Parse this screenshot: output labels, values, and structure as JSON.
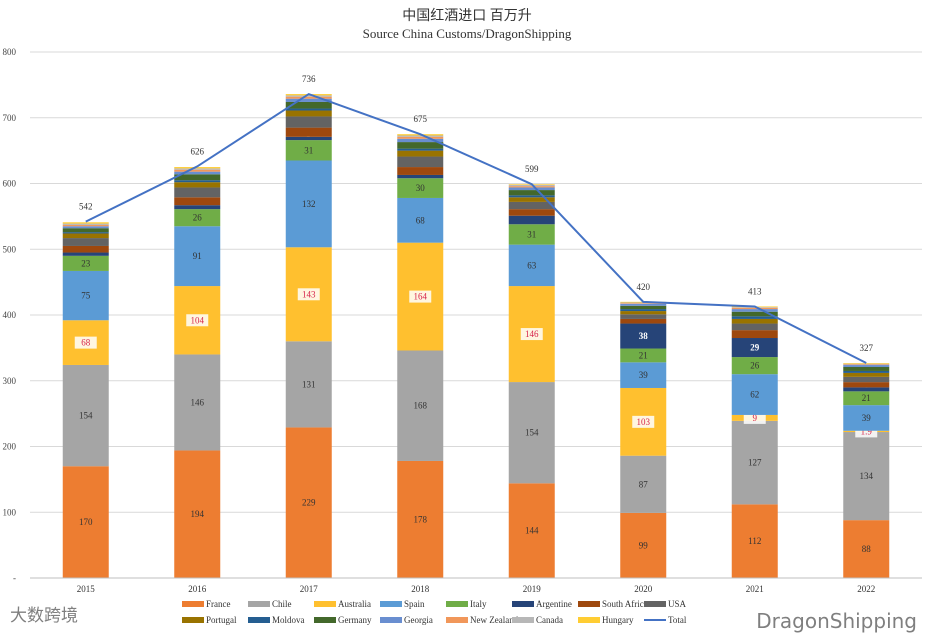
{
  "chart_data": {
    "type": "bar",
    "title": "中国红酒进口 百万升",
    "subtitle": "Source China Customs/DragonShipping",
    "xlabel": "",
    "ylabel": "",
    "ylim": [
      0,
      800
    ],
    "yticks": [
      "-",
      "100",
      "200",
      "300",
      "400",
      "500",
      "600",
      "700",
      "800"
    ],
    "grid": true,
    "legend_position": "bottom",
    "categories": [
      "2015",
      "2016",
      "2017",
      "2018",
      "2019",
      "2020",
      "2021",
      "2022"
    ],
    "series": [
      {
        "name": "France",
        "color": "#ED7D31",
        "labeled": true,
        "values": [
          170,
          194,
          229,
          178,
          144,
          99,
          112,
          88
        ]
      },
      {
        "name": "Chile",
        "color": "#A5A5A5",
        "labeled": true,
        "values": [
          154,
          146,
          131,
          168,
          154,
          87,
          127,
          134
        ]
      },
      {
        "name": "Australia",
        "color": "#FFC02F",
        "labeled": true,
        "values": [
          68,
          104,
          143,
          164,
          146,
          103,
          9.0,
          1.9
        ]
      },
      {
        "name": "Spain",
        "color": "#5B9BD5",
        "labeled": true,
        "values": [
          75,
          91,
          132,
          68,
          63,
          39,
          62,
          39
        ]
      },
      {
        "name": "Italy",
        "color": "#70AD47",
        "labeled": true,
        "values": [
          23,
          26,
          31,
          30,
          31,
          21,
          26,
          21
        ]
      },
      {
        "name": "Argentine",
        "color": "#264478",
        "labeled": true,
        "values": [
          5,
          6,
          5,
          5,
          13,
          38,
          29,
          6
        ]
      },
      {
        "name": "South Africa",
        "color": "#9E480E",
        "labeled": false,
        "values": [
          10,
          12,
          14,
          12,
          10,
          7,
          12,
          8
        ]
      },
      {
        "name": "USA",
        "color": "#636363",
        "labeled": false,
        "values": [
          12,
          15,
          17,
          16,
          11,
          7,
          10,
          8
        ]
      },
      {
        "name": "Portugal",
        "color": "#997300",
        "labeled": false,
        "values": [
          7,
          8,
          9,
          9,
          7,
          5,
          7,
          6
        ]
      },
      {
        "name": "Moldova",
        "color": "#255E91",
        "labeled": false,
        "values": [
          2,
          3,
          3,
          3,
          3,
          3,
          4,
          3
        ]
      },
      {
        "name": "Germany",
        "color": "#43682B",
        "labeled": false,
        "values": [
          6,
          9,
          10,
          10,
          8,
          5,
          7,
          6
        ]
      },
      {
        "name": "Georgia",
        "color": "#698ED0",
        "labeled": false,
        "values": [
          3,
          4,
          5,
          5,
          4,
          3,
          4,
          3
        ]
      },
      {
        "name": "New Zealand",
        "color": "#F1975A",
        "labeled": false,
        "values": [
          2,
          3,
          3,
          3,
          2,
          1,
          2,
          1
        ]
      },
      {
        "name": "Canada",
        "color": "#B7B7B7",
        "labeled": false,
        "values": [
          2,
          2,
          2,
          2,
          2,
          1,
          1,
          1
        ]
      },
      {
        "name": "Hungary",
        "color": "#FFCD33",
        "labeled": false,
        "values": [
          2,
          2,
          2,
          2,
          1,
          1,
          1,
          1
        ]
      }
    ],
    "total": {
      "name": "Total",
      "color": "#4472C4",
      "values": [
        542,
        626,
        736,
        675,
        599,
        420,
        413,
        327
      ]
    }
  },
  "watermarks": {
    "brand": "DragonShipping",
    "source": "大数跨境"
  }
}
